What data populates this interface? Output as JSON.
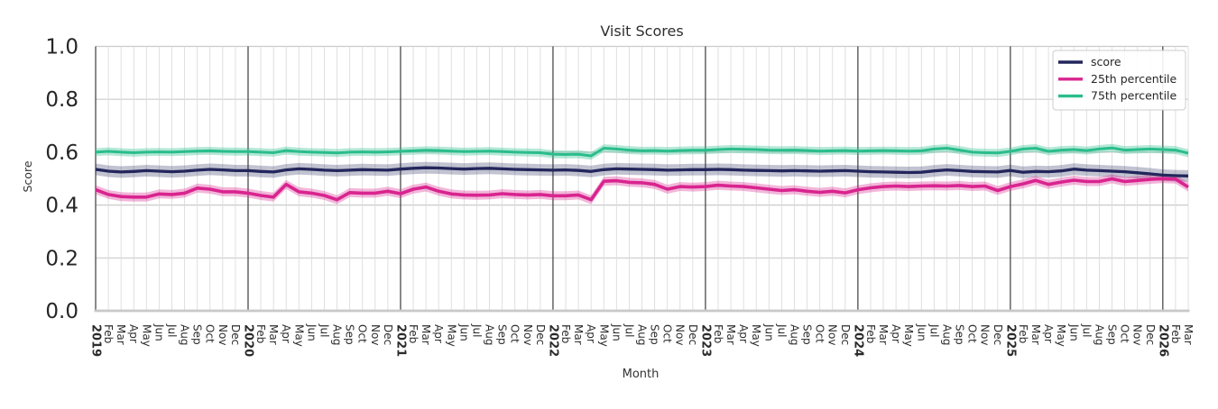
{
  "chart_data": {
    "type": "line",
    "title": "Visit Scores",
    "xlabel": "Month",
    "ylabel": "Score",
    "ylim": [
      0.0,
      1.0
    ],
    "yticks": [
      "0.0",
      "0.2",
      "0.4",
      "0.6",
      "0.8",
      "1.0"
    ],
    "grid": true,
    "legend_position": "upper right",
    "x": [
      "2019",
      "Feb",
      "Mar",
      "Apr",
      "May",
      "Jun",
      "Jul",
      "Aug",
      "Sep",
      "Oct",
      "Nov",
      "Dec",
      "2020",
      "Feb",
      "Mar",
      "Apr",
      "May",
      "Jun",
      "Jul",
      "Aug",
      "Sep",
      "Oct",
      "Nov",
      "Dec",
      "2021",
      "Feb",
      "Mar",
      "Apr",
      "May",
      "Jun",
      "Jul",
      "Aug",
      "Sep",
      "Oct",
      "Nov",
      "Dec",
      "2022",
      "Feb",
      "Mar",
      "Apr",
      "May",
      "Jun",
      "Jul",
      "Aug",
      "Sep",
      "Oct",
      "Nov",
      "Dec",
      "2023",
      "Feb",
      "Mar",
      "Apr",
      "May",
      "Jun",
      "Jul",
      "Aug",
      "Sep",
      "Oct",
      "Nov",
      "Dec",
      "2024",
      "Feb",
      "Mar",
      "Apr",
      "May",
      "Jun",
      "Jul",
      "Aug",
      "Sep",
      "Oct",
      "Nov",
      "Dec",
      "2025",
      "Feb",
      "Mar",
      "Apr",
      "May",
      "Jun",
      "Jul",
      "Aug",
      "Sep",
      "Oct",
      "Nov",
      "Dec",
      "2026",
      "Feb",
      "Mar"
    ],
    "series": [
      {
        "name": "score",
        "color": "#23265b",
        "band_halfwidth": 0.022,
        "values": [
          0.535,
          0.528,
          0.525,
          0.527,
          0.53,
          0.528,
          0.526,
          0.528,
          0.532,
          0.535,
          0.533,
          0.53,
          0.53,
          0.527,
          0.525,
          0.533,
          0.537,
          0.535,
          0.532,
          0.53,
          0.532,
          0.534,
          0.533,
          0.532,
          0.536,
          0.539,
          0.541,
          0.54,
          0.538,
          0.536,
          0.538,
          0.539,
          0.537,
          0.535,
          0.534,
          0.533,
          0.532,
          0.533,
          0.531,
          0.527,
          0.534,
          0.537,
          0.536,
          0.535,
          0.534,
          0.532,
          0.533,
          0.534,
          0.534,
          0.535,
          0.534,
          0.532,
          0.531,
          0.53,
          0.529,
          0.53,
          0.529,
          0.528,
          0.529,
          0.53,
          0.528,
          0.526,
          0.525,
          0.524,
          0.523,
          0.524,
          0.529,
          0.533,
          0.53,
          0.527,
          0.526,
          0.525,
          0.531,
          0.524,
          0.527,
          0.526,
          0.529,
          0.536,
          0.532,
          0.53,
          0.528,
          0.526,
          0.522,
          0.518,
          0.513,
          0.511,
          0.51
        ]
      },
      {
        "name": "25th percentile",
        "color": "#d9248f",
        "band_halfwidth": 0.017,
        "values": [
          0.458,
          0.44,
          0.432,
          0.43,
          0.43,
          0.442,
          0.44,
          0.445,
          0.464,
          0.46,
          0.45,
          0.45,
          0.445,
          0.436,
          0.43,
          0.478,
          0.45,
          0.445,
          0.436,
          0.42,
          0.447,
          0.445,
          0.445,
          0.452,
          0.443,
          0.46,
          0.468,
          0.452,
          0.442,
          0.438,
          0.437,
          0.438,
          0.443,
          0.44,
          0.438,
          0.44,
          0.435,
          0.435,
          0.438,
          0.42,
          0.49,
          0.492,
          0.486,
          0.484,
          0.478,
          0.46,
          0.47,
          0.468,
          0.47,
          0.475,
          0.472,
          0.47,
          0.465,
          0.46,
          0.455,
          0.458,
          0.452,
          0.448,
          0.452,
          0.446,
          0.458,
          0.465,
          0.47,
          0.472,
          0.47,
          0.472,
          0.473,
          0.472,
          0.474,
          0.47,
          0.472,
          0.455,
          0.47,
          0.48,
          0.493,
          0.478,
          0.487,
          0.494,
          0.489,
          0.489,
          0.499,
          0.489,
          0.493,
          0.497,
          0.5,
          0.498,
          0.468
        ]
      },
      {
        "name": "75th percentile",
        "color": "#2abd8c",
        "band_halfwidth": 0.015,
        "values": [
          0.6,
          0.603,
          0.6,
          0.598,
          0.6,
          0.601,
          0.6,
          0.602,
          0.604,
          0.605,
          0.603,
          0.602,
          0.602,
          0.6,
          0.598,
          0.606,
          0.602,
          0.6,
          0.599,
          0.597,
          0.6,
          0.601,
          0.6,
          0.601,
          0.603,
          0.605,
          0.607,
          0.606,
          0.604,
          0.602,
          0.603,
          0.604,
          0.602,
          0.6,
          0.599,
          0.598,
          0.592,
          0.591,
          0.592,
          0.586,
          0.615,
          0.612,
          0.608,
          0.605,
          0.606,
          0.604,
          0.606,
          0.607,
          0.607,
          0.61,
          0.612,
          0.611,
          0.61,
          0.608,
          0.607,
          0.608,
          0.606,
          0.604,
          0.605,
          0.606,
          0.604,
          0.605,
          0.606,
          0.605,
          0.604,
          0.605,
          0.612,
          0.615,
          0.608,
          0.6,
          0.598,
          0.597,
          0.603,
          0.612,
          0.615,
          0.603,
          0.608,
          0.61,
          0.606,
          0.612,
          0.616,
          0.608,
          0.61,
          0.612,
          0.61,
          0.608,
          0.596
        ]
      }
    ]
  }
}
